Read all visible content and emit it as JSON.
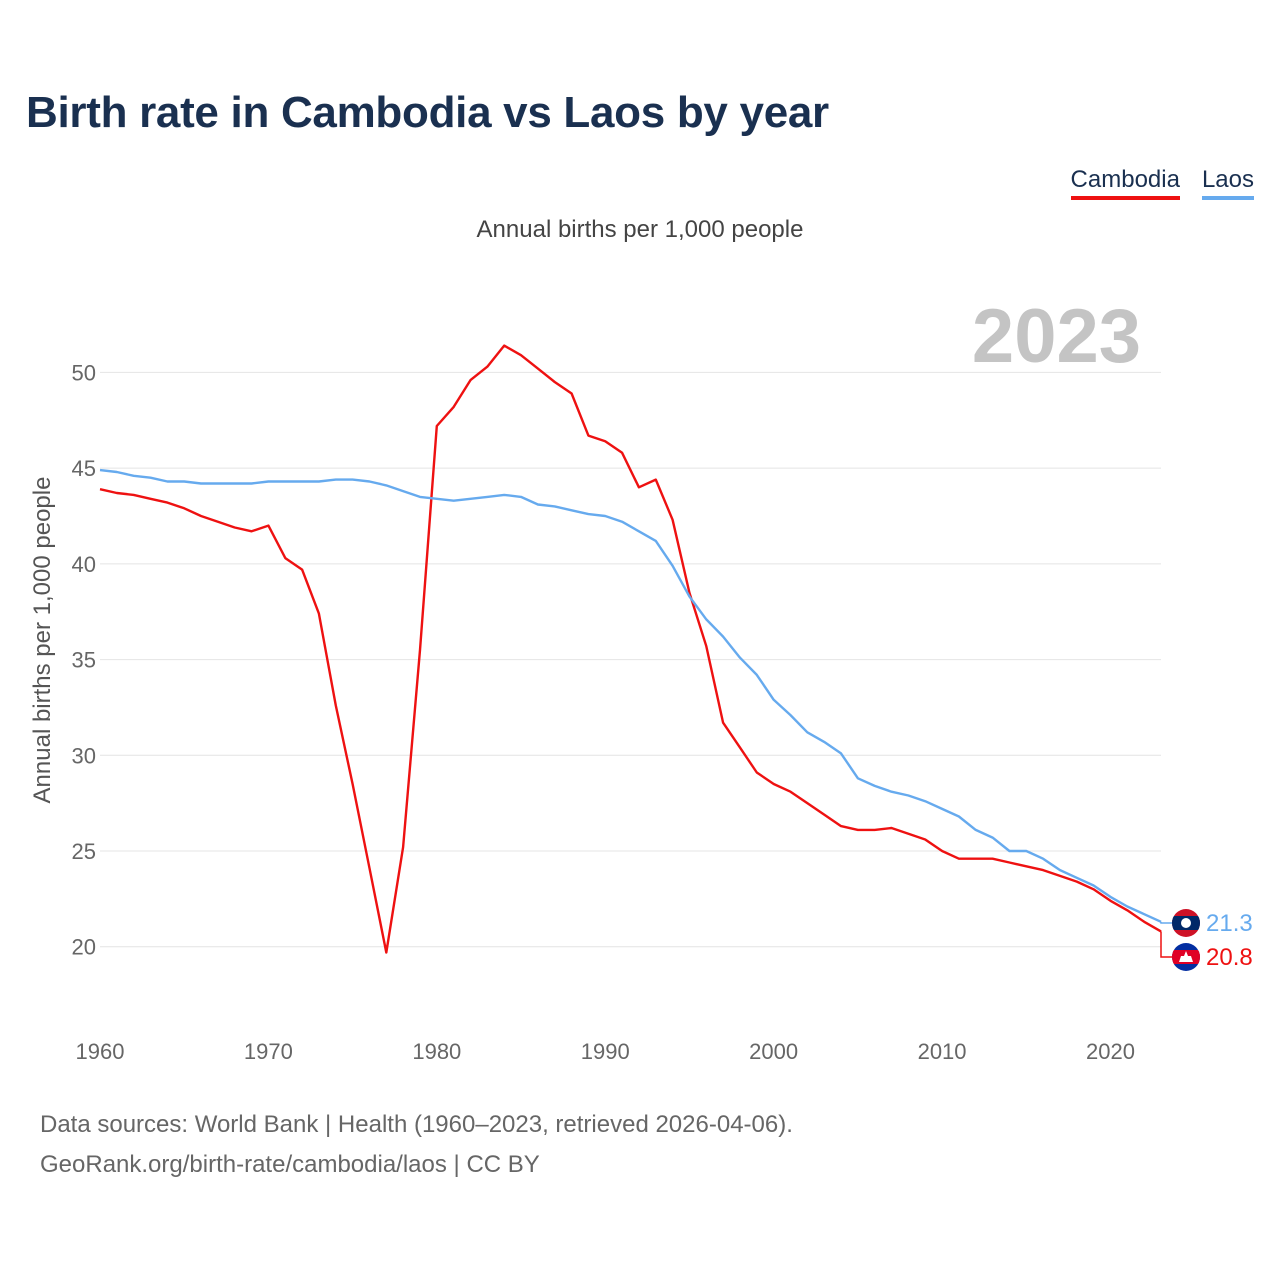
{
  "header": {
    "title": "Birth rate in Cambodia vs Laos by year",
    "subtitle": "Annual births per 1,000 people"
  },
  "legend": {
    "items": [
      {
        "label": "Cambodia",
        "color": "#ee1111"
      },
      {
        "label": "Laos",
        "color": "#66aaee"
      }
    ]
  },
  "footer": {
    "line1": "Data sources: World Bank | Health (1960–2023, retrieved 2026-04-06).",
    "line2": "GeoRank.org/birth-rate/cambodia/laos | CC BY"
  },
  "chart_data": {
    "type": "line",
    "title": "Birth rate in Cambodia vs Laos by year",
    "subtitle": "Annual births per 1,000 people",
    "xlabel": "",
    "ylabel": "Annual births per 1,000 people",
    "xlim": [
      1960,
      2023
    ],
    "ylim": [
      18,
      53
    ],
    "x_ticks": [
      1960,
      1970,
      1980,
      1990,
      2000,
      2010,
      2020
    ],
    "y_ticks": [
      20,
      25,
      30,
      35,
      40,
      45,
      50
    ],
    "grid": true,
    "legend_position": "top-right",
    "year_watermark": "2023",
    "x": [
      1960,
      1961,
      1962,
      1963,
      1964,
      1965,
      1966,
      1967,
      1968,
      1969,
      1970,
      1971,
      1972,
      1973,
      1974,
      1975,
      1976,
      1977,
      1978,
      1979,
      1980,
      1981,
      1982,
      1983,
      1984,
      1985,
      1986,
      1987,
      1988,
      1989,
      1990,
      1991,
      1992,
      1993,
      1994,
      1995,
      1996,
      1997,
      1998,
      1999,
      2000,
      2001,
      2002,
      2003,
      2004,
      2005,
      2006,
      2007,
      2008,
      2009,
      2010,
      2011,
      2012,
      2013,
      2014,
      2015,
      2016,
      2017,
      2018,
      2019,
      2020,
      2021,
      2022,
      2023
    ],
    "series": [
      {
        "name": "Cambodia",
        "color": "#ee1111",
        "end_label": "20.8",
        "values": [
          43.9,
          43.7,
          43.6,
          43.4,
          43.2,
          42.9,
          42.5,
          42.2,
          41.9,
          41.7,
          42.0,
          40.3,
          39.7,
          37.4,
          32.6,
          28.5,
          24.1,
          19.7,
          25.2,
          35.5,
          47.2,
          48.2,
          49.6,
          50.3,
          51.4,
          50.9,
          50.2,
          49.5,
          48.9,
          46.7,
          46.4,
          45.8,
          44.0,
          44.4,
          42.3,
          38.5,
          35.7,
          31.7,
          30.4,
          29.1,
          28.5,
          28.1,
          27.5,
          26.9,
          26.3,
          26.1,
          26.1,
          26.2,
          25.9,
          25.6,
          25.0,
          24.6,
          24.6,
          24.6,
          24.4,
          24.2,
          24.0,
          23.7,
          23.4,
          23.0,
          22.4,
          21.9,
          21.3,
          20.8
        ]
      },
      {
        "name": "Laos",
        "color": "#66aaee",
        "end_label": "21.3",
        "values": [
          44.9,
          44.8,
          44.6,
          44.5,
          44.3,
          44.3,
          44.2,
          44.2,
          44.2,
          44.2,
          44.3,
          44.3,
          44.3,
          44.3,
          44.4,
          44.4,
          44.3,
          44.1,
          43.8,
          43.5,
          43.4,
          43.3,
          43.4,
          43.5,
          43.6,
          43.5,
          43.1,
          43.0,
          42.8,
          42.6,
          42.5,
          42.2,
          41.7,
          41.2,
          39.9,
          38.3,
          37.1,
          36.2,
          35.1,
          34.2,
          32.9,
          32.1,
          31.2,
          30.7,
          30.1,
          28.8,
          28.4,
          28.1,
          27.9,
          27.6,
          27.2,
          26.8,
          26.1,
          25.7,
          25.0,
          25.0,
          24.6,
          24.0,
          23.6,
          23.2,
          22.6,
          22.1,
          21.7,
          21.3
        ]
      }
    ]
  }
}
